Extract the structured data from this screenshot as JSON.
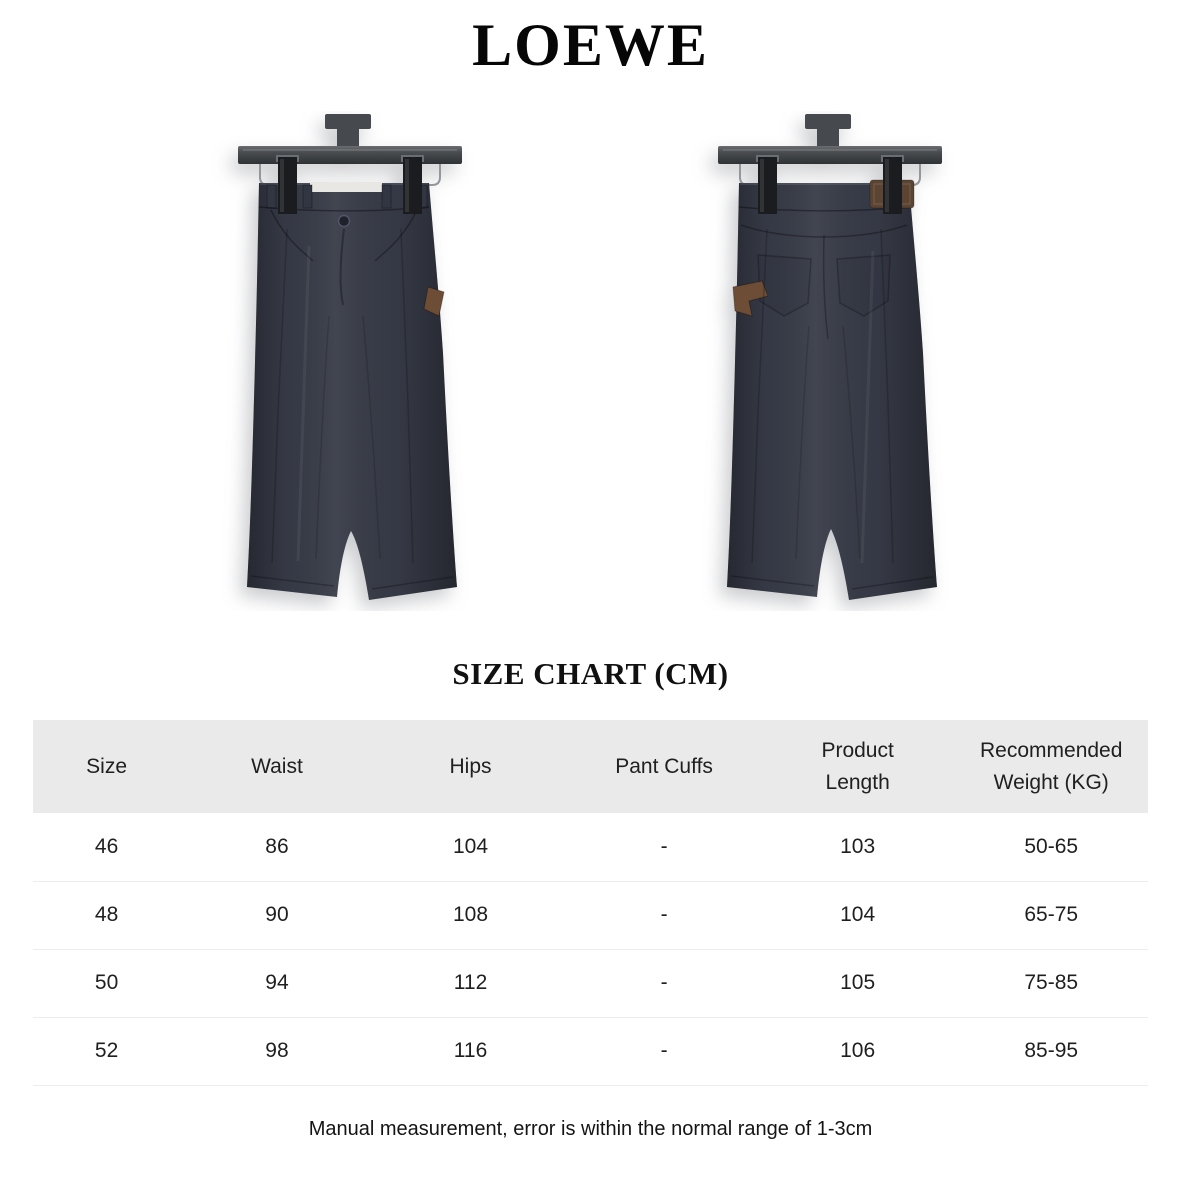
{
  "brand": {
    "logo": "LOEWE"
  },
  "size_chart": {
    "title": "SIZE CHART (CM)",
    "columns": [
      "Size",
      "Waist",
      "Hips",
      "Pant Cuffs",
      "Product\nLength",
      "Recommended\nWeight (KG)"
    ],
    "rows": [
      [
        "46",
        "86",
        "104",
        "-",
        "103",
        "50-65"
      ],
      [
        "48",
        "90",
        "108",
        "-",
        "104",
        "65-75"
      ],
      [
        "50",
        "94",
        "112",
        "-",
        "105",
        "75-85"
      ],
      [
        "52",
        "98",
        "116",
        "-",
        "106",
        "85-95"
      ]
    ]
  },
  "note": "Manual measurement, error is within the normal range of 1-3cm",
  "colors": {
    "pants_navy": "#363a46",
    "hanger_wood": "#46494d",
    "leather_brown": "#6d4d35",
    "leather_brown_dark": "#5c4433",
    "table_header_bg": "#eaeaea",
    "row_divider": "#ededed"
  }
}
